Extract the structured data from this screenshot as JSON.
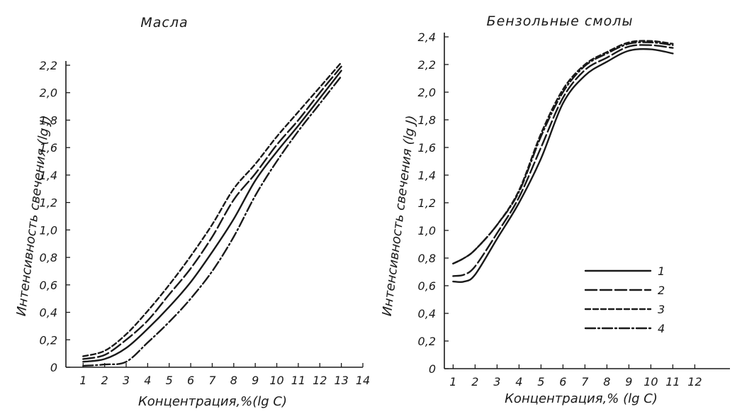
{
  "colors": {
    "ink": "#1a1a1a",
    "paper": "#ffffff"
  },
  "legend_placement": "bottom-right of right chart",
  "chart_data": [
    {
      "type": "line",
      "title": "Масла",
      "xlabel": "Концентрация,%(lg C)",
      "ylabel": "Интенсивность свечения (lg J)",
      "xlim": [
        0.2,
        14
      ],
      "ylim": [
        0,
        2.2
      ],
      "x_ticks": [
        "1",
        "2",
        "3",
        "4",
        "5",
        "6",
        "7",
        "8",
        "9",
        "10",
        "11",
        "12",
        "13",
        "14"
      ],
      "y_ticks": [
        "0",
        "0,2",
        "0,4",
        "0,6",
        "0,8",
        "1,0",
        "1,2",
        "1,4",
        "1,6",
        "1,8",
        "2,0",
        "2,2"
      ],
      "grid": false,
      "series": [
        {
          "name": "1",
          "style": "solid",
          "x": [
            1,
            2,
            3,
            4,
            5,
            6,
            7,
            8,
            9,
            10,
            11,
            12,
            13
          ],
          "y": [
            0.04,
            0.06,
            0.14,
            0.28,
            0.44,
            0.62,
            0.84,
            1.08,
            1.36,
            1.57,
            1.76,
            1.96,
            2.16
          ]
        },
        {
          "name": "2",
          "style": "long-dash",
          "x": [
            1,
            2,
            3,
            4,
            5,
            6,
            7,
            8,
            9,
            10,
            11,
            12,
            13
          ],
          "y": [
            0.06,
            0.09,
            0.2,
            0.34,
            0.53,
            0.72,
            0.95,
            1.22,
            1.41,
            1.62,
            1.8,
            2.0,
            2.19
          ]
        },
        {
          "name": "3",
          "style": "short-dash",
          "x": [
            1,
            2,
            3,
            4,
            5,
            6,
            7,
            8,
            9,
            10,
            11,
            12,
            13
          ],
          "y": [
            0.08,
            0.12,
            0.24,
            0.41,
            0.6,
            0.81,
            1.04,
            1.3,
            1.48,
            1.68,
            1.86,
            2.04,
            2.22
          ]
        },
        {
          "name": "4",
          "style": "dash-dot",
          "x": [
            1,
            2,
            3,
            4,
            5,
            6,
            7,
            8,
            9,
            10,
            11,
            12,
            13
          ],
          "y": [
            0.01,
            0.02,
            0.04,
            0.18,
            0.33,
            0.5,
            0.7,
            0.95,
            1.25,
            1.5,
            1.72,
            1.92,
            2.12
          ]
        }
      ]
    },
    {
      "type": "line",
      "title": "Бензольные смолы",
      "xlabel": "Концентрация,% (lg C)",
      "ylabel": "Интенсивность свечения (lg J)",
      "xlim": [
        0.6,
        13.6
      ],
      "ylim": [
        0,
        2.4
      ],
      "x_ticks": [
        "1",
        "2",
        "3",
        "4",
        "5",
        "6",
        "7",
        "8",
        "9",
        "10",
        "11",
        "12"
      ],
      "y_ticks": [
        "0",
        "0,2",
        "0,4",
        "0,6",
        "0,8",
        "1,0",
        "1,2",
        "1,4",
        "1,6",
        "1,8",
        "2,0",
        "2,2",
        "2,4"
      ],
      "grid": false,
      "series": [
        {
          "name": "1",
          "style": "solid",
          "x": [
            1,
            1.5,
            2,
            3,
            4,
            5,
            6,
            7,
            8,
            9,
            10,
            11
          ],
          "y": [
            0.63,
            0.63,
            0.68,
            0.94,
            1.2,
            1.52,
            1.92,
            2.12,
            2.22,
            2.3,
            2.31,
            2.28
          ]
        },
        {
          "name": "2",
          "style": "long-dash",
          "x": [
            1,
            1.5,
            2,
            3,
            4,
            5,
            6,
            7,
            8,
            9,
            10,
            11
          ],
          "y": [
            0.67,
            0.68,
            0.74,
            0.98,
            1.24,
            1.6,
            1.96,
            2.16,
            2.25,
            2.33,
            2.34,
            2.32
          ]
        },
        {
          "name": "3",
          "style": "short-dash",
          "x": [
            1,
            1.5,
            2,
            3,
            4,
            5,
            6,
            7,
            8,
            9,
            10,
            11
          ],
          "y": [
            0.76,
            0.8,
            0.86,
            1.04,
            1.29,
            1.7,
            2.02,
            2.2,
            2.29,
            2.36,
            2.37,
            2.35
          ]
        },
        {
          "name": "4",
          "style": "dash-dot",
          "x": [
            1,
            1.5,
            2,
            3,
            4,
            5,
            6,
            7,
            8,
            9,
            10,
            11
          ],
          "y": [
            0.76,
            0.8,
            0.86,
            1.04,
            1.28,
            1.68,
            2.0,
            2.19,
            2.28,
            2.35,
            2.36,
            2.34
          ]
        }
      ],
      "legend": [
        "1",
        "2",
        "3",
        "4"
      ]
    }
  ]
}
